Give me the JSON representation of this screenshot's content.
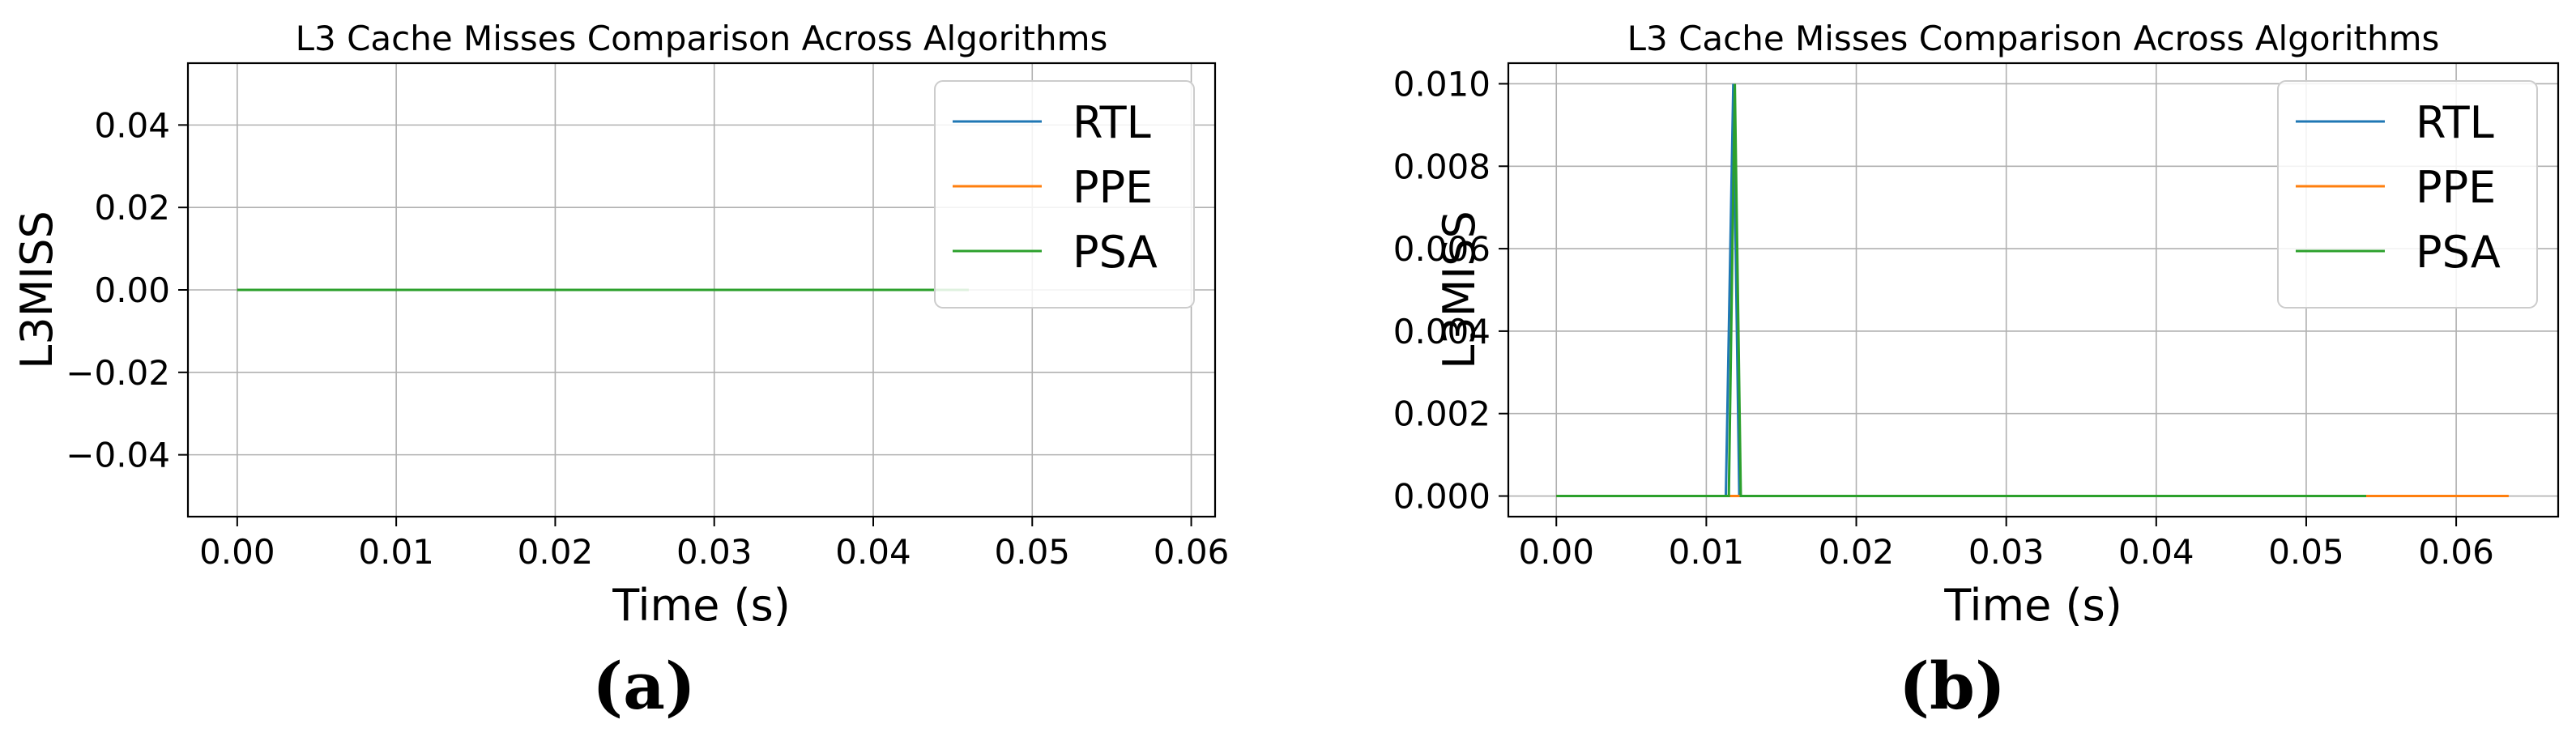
{
  "figure": {
    "captions": [
      "(a)",
      "(b)"
    ]
  },
  "colors": {
    "RTL": "#1f77b4",
    "PPE": "#ff7f0e",
    "PSA": "#2ca02c",
    "grid": "#b0b0b0"
  },
  "chart_data": [
    {
      "type": "line",
      "title": "L3 Cache Misses Comparison Across Algorithms",
      "xlabel": "Time (s)",
      "ylabel": "L3MISS",
      "xlim": [
        -0.0031,
        0.0615
      ],
      "ylim": [
        -0.055,
        0.055
      ],
      "xticks": [
        0.0,
        0.01,
        0.02,
        0.03,
        0.04,
        0.05,
        0.06
      ],
      "xtick_labels": [
        "0.00",
        "0.01",
        "0.02",
        "0.03",
        "0.04",
        "0.05",
        "0.06"
      ],
      "yticks": [
        0.04,
        0.02,
        0.0,
        -0.02,
        -0.04
      ],
      "ytick_labels": [
        "0.04",
        "0.02",
        "0.00",
        "−0.02",
        "−0.04"
      ],
      "grid": true,
      "legend_position": "top-right",
      "series": [
        {
          "name": "RTL",
          "x": [
            0.0,
            0.046
          ],
          "y": [
            0,
            0
          ]
        },
        {
          "name": "PPE",
          "x": [
            0.0,
            0.046
          ],
          "y": [
            0,
            0
          ]
        },
        {
          "name": "PSA",
          "x": [
            0.0,
            0.046
          ],
          "y": [
            0,
            0
          ]
        }
      ]
    },
    {
      "type": "line",
      "title": "L3 Cache Misses Comparison Across Algorithms",
      "xlabel": "Time (s)",
      "ylabel": "L3MISS",
      "xlim": [
        -0.0032,
        0.0668
      ],
      "ylim": [
        -0.0005,
        0.0105
      ],
      "xticks": [
        0.0,
        0.01,
        0.02,
        0.03,
        0.04,
        0.05,
        0.06
      ],
      "xtick_labels": [
        "0.00",
        "0.01",
        "0.02",
        "0.03",
        "0.04",
        "0.05",
        "0.06"
      ],
      "yticks": [
        0.01,
        0.008,
        0.006,
        0.004,
        0.002,
        0.0
      ],
      "ytick_labels": [
        "0.010",
        "0.008",
        "0.006",
        "0.004",
        "0.002",
        "0.000"
      ],
      "grid": true,
      "legend_position": "top-right",
      "series": [
        {
          "name": "RTL",
          "x": [
            0.0,
            0.0113,
            0.0118,
            0.0122,
            0.054
          ],
          "y": [
            0,
            0,
            0.01,
            0,
            0
          ]
        },
        {
          "name": "PPE",
          "x": [
            0.0,
            0.0635
          ],
          "y": [
            0,
            0
          ]
        },
        {
          "name": "PSA",
          "x": [
            0.0,
            0.0115,
            0.0119,
            0.0123,
            0.054
          ],
          "y": [
            0,
            0,
            0.01,
            0,
            0
          ]
        }
      ]
    }
  ]
}
